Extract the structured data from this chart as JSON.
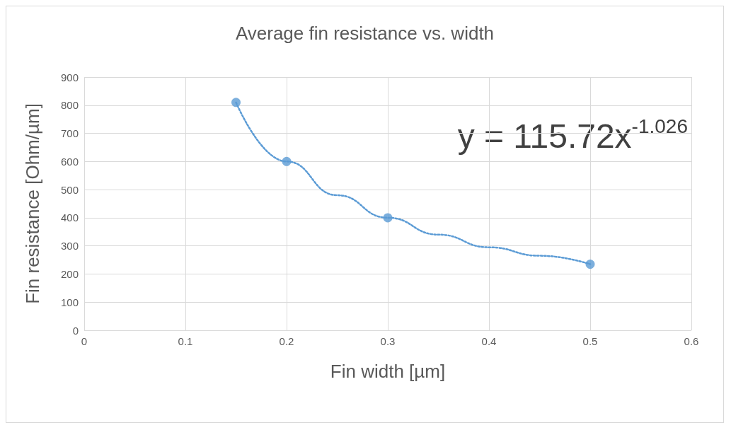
{
  "chart_data": {
    "type": "scatter",
    "title": "Average fin resistance vs. width",
    "xlabel": "Fin width [µm]",
    "ylabel": "Fin resistance [Ohm/µm]",
    "x": [
      0.15,
      0.2,
      0.3,
      0.5
    ],
    "series": [
      {
        "color": "#5b9bd5",
        "values": [
          810,
          600,
          400,
          235
        ],
        "marker": "circle"
      },
      {
        "type": "line",
        "color": "#5b9bd5",
        "x": [
          0.15,
          0.2,
          0.25,
          0.3,
          0.35,
          0.4,
          0.45,
          0.5
        ],
        "values": [
          810,
          600,
          480,
          400,
          340,
          295,
          265,
          235
        ],
        "line_style": "dotted",
        "marker": "none"
      }
    ],
    "xlim": [
      0,
      0.6
    ],
    "xticks": [
      0,
      0.1,
      0.2,
      0.3,
      0.4,
      0.5,
      0.6
    ],
    "ylim": [
      0,
      900
    ],
    "yticks": [
      0,
      100,
      200,
      300,
      400,
      500,
      600,
      700,
      800,
      900
    ],
    "grid": true,
    "annotations": [
      "y = 115.72x$^{-1.026}$"
    ]
  }
}
